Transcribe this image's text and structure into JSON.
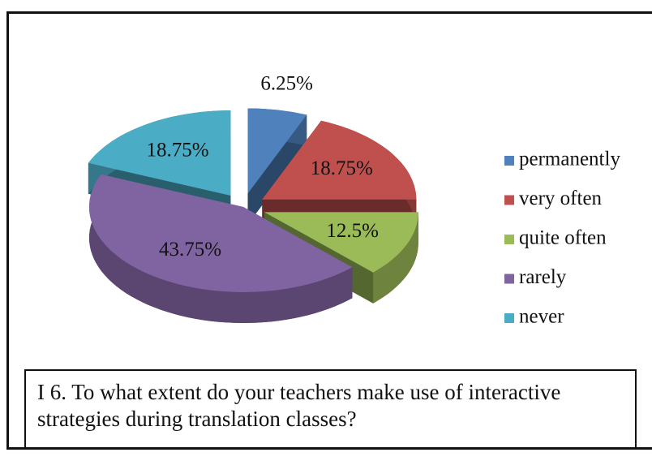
{
  "chart_data": {
    "type": "pie",
    "title": "I 6. To what extent do your teachers make use of interactive strategies during translation classes?",
    "categories": [
      "permanently",
      "very often",
      "quite often",
      "rarely",
      "never"
    ],
    "values": [
      6.25,
      18.75,
      12.5,
      43.75,
      18.75
    ],
    "value_labels": [
      "6.25%",
      "18.75%",
      "12.5%",
      "43.75%",
      "18.75%"
    ],
    "colors": [
      "#4f81bd",
      "#c0504d",
      "#9bbb59",
      "#8064a2",
      "#4bacc6"
    ],
    "legend": "right"
  }
}
